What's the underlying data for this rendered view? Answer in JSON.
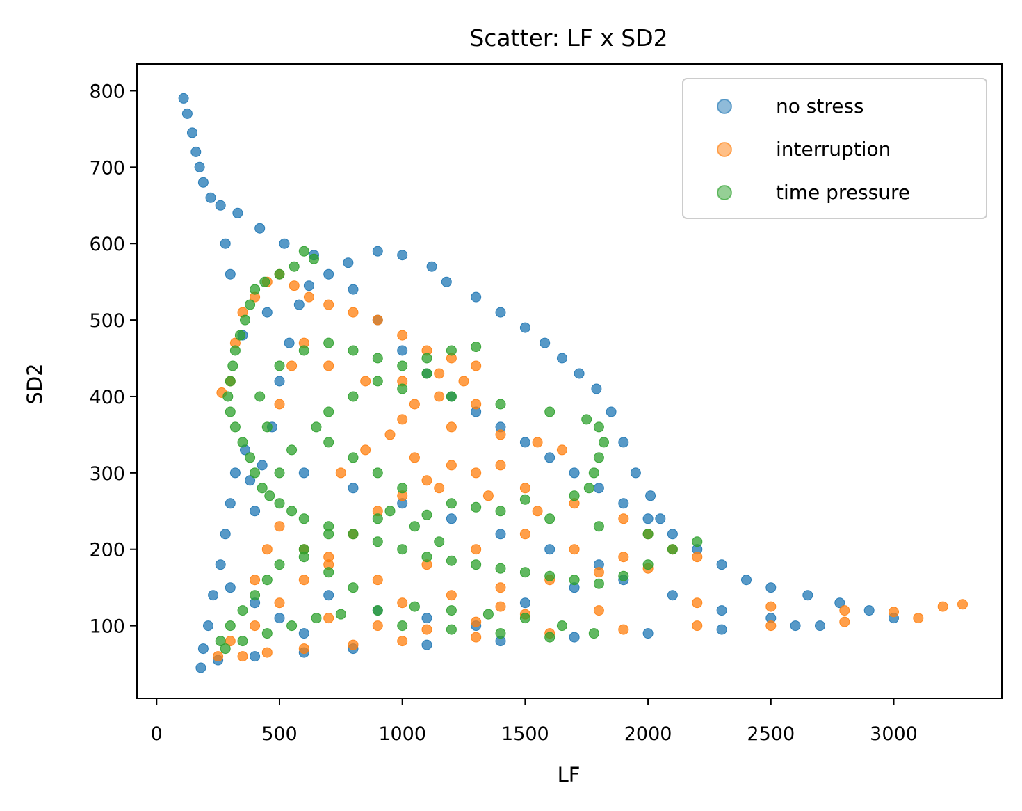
{
  "chart_data": {
    "type": "scatter",
    "title": "Scatter: LF x SD2",
    "xlabel": "LF",
    "ylabel": "SD2",
    "xlim": [
      -80,
      3440
    ],
    "ylim": [
      5,
      835
    ],
    "xticks": [
      0,
      500,
      1000,
      1500,
      2000,
      2500,
      3000
    ],
    "yticks": [
      100,
      200,
      300,
      400,
      500,
      600,
      700,
      800
    ],
    "legend_position": "top-right",
    "grid": false,
    "series": [
      {
        "name": "no stress",
        "color": "#1f77b4",
        "points": [
          [
            110,
            790
          ],
          [
            125,
            770
          ],
          [
            145,
            745
          ],
          [
            160,
            720
          ],
          [
            175,
            700
          ],
          [
            190,
            680
          ],
          [
            220,
            660
          ],
          [
            260,
            650
          ],
          [
            330,
            640
          ],
          [
            420,
            620
          ],
          [
            520,
            600
          ],
          [
            640,
            585
          ],
          [
            780,
            575
          ],
          [
            900,
            590
          ],
          [
            1000,
            585
          ],
          [
            1120,
            570
          ],
          [
            1180,
            550
          ],
          [
            1300,
            530
          ],
          [
            1400,
            510
          ],
          [
            1500,
            490
          ],
          [
            1580,
            470
          ],
          [
            1650,
            450
          ],
          [
            1720,
            430
          ],
          [
            1790,
            410
          ],
          [
            1850,
            380
          ],
          [
            1900,
            340
          ],
          [
            1950,
            300
          ],
          [
            2010,
            270
          ],
          [
            2050,
            240
          ],
          [
            2100,
            220
          ],
          [
            2200,
            200
          ],
          [
            2300,
            180
          ],
          [
            2400,
            160
          ],
          [
            2500,
            150
          ],
          [
            2650,
            140
          ],
          [
            2780,
            130
          ],
          [
            2900,
            120
          ],
          [
            3000,
            110
          ],
          [
            2600,
            100
          ],
          [
            2300,
            95
          ],
          [
            2000,
            90
          ],
          [
            1700,
            85
          ],
          [
            1400,
            80
          ],
          [
            1100,
            75
          ],
          [
            800,
            70
          ],
          [
            600,
            65
          ],
          [
            400,
            60
          ],
          [
            250,
            55
          ],
          [
            180,
            45
          ],
          [
            190,
            70
          ],
          [
            210,
            100
          ],
          [
            230,
            140
          ],
          [
            260,
            180
          ],
          [
            280,
            220
          ],
          [
            300,
            260
          ],
          [
            320,
            300
          ],
          [
            360,
            330
          ],
          [
            380,
            290
          ],
          [
            400,
            250
          ],
          [
            430,
            310
          ],
          [
            470,
            360
          ],
          [
            500,
            420
          ],
          [
            540,
            470
          ],
          [
            580,
            520
          ],
          [
            620,
            545
          ],
          [
            700,
            560
          ],
          [
            800,
            540
          ],
          [
            900,
            500
          ],
          [
            1000,
            460
          ],
          [
            1100,
            430
          ],
          [
            1200,
            400
          ],
          [
            1300,
            380
          ],
          [
            1400,
            360
          ],
          [
            1500,
            340
          ],
          [
            1600,
            320
          ],
          [
            1700,
            300
          ],
          [
            1800,
            280
          ],
          [
            1900,
            260
          ],
          [
            2000,
            240
          ],
          [
            350,
            480
          ],
          [
            450,
            510
          ],
          [
            300,
            560
          ],
          [
            280,
            600
          ],
          [
            600,
            300
          ],
          [
            800,
            280
          ],
          [
            1000,
            260
          ],
          [
            1200,
            240
          ],
          [
            1400,
            220
          ],
          [
            1600,
            200
          ],
          [
            1800,
            180
          ],
          [
            700,
            140
          ],
          [
            900,
            120
          ],
          [
            1100,
            110
          ],
          [
            1300,
            100
          ],
          [
            1500,
            130
          ],
          [
            1700,
            150
          ],
          [
            1900,
            160
          ],
          [
            2100,
            140
          ],
          [
            2300,
            120
          ],
          [
            2500,
            110
          ],
          [
            2700,
            100
          ],
          [
            600,
            90
          ],
          [
            500,
            110
          ],
          [
            400,
            130
          ],
          [
            300,
            150
          ]
        ]
      },
      {
        "name": "interruption",
        "color": "#ff7f0e",
        "points": [
          [
            265,
            405
          ],
          [
            300,
            420
          ],
          [
            320,
            470
          ],
          [
            350,
            510
          ],
          [
            400,
            530
          ],
          [
            450,
            550
          ],
          [
            500,
            560
          ],
          [
            560,
            545
          ],
          [
            620,
            530
          ],
          [
            700,
            520
          ],
          [
            800,
            510
          ],
          [
            900,
            500
          ],
          [
            1000,
            480
          ],
          [
            1100,
            460
          ],
          [
            1200,
            450
          ],
          [
            1300,
            440
          ],
          [
            1250,
            420
          ],
          [
            1150,
            400
          ],
          [
            1050,
            390
          ],
          [
            1000,
            370
          ],
          [
            1200,
            360
          ],
          [
            1400,
            350
          ],
          [
            1550,
            340
          ],
          [
            1650,
            330
          ],
          [
            1400,
            310
          ],
          [
            1300,
            300
          ],
          [
            1500,
            280
          ],
          [
            1700,
            260
          ],
          [
            1900,
            240
          ],
          [
            2000,
            220
          ],
          [
            2100,
            200
          ],
          [
            2200,
            190
          ],
          [
            2000,
            175
          ],
          [
            1800,
            170
          ],
          [
            1600,
            160
          ],
          [
            1400,
            150
          ],
          [
            1200,
            140
          ],
          [
            1000,
            130
          ],
          [
            1400,
            125
          ],
          [
            1800,
            120
          ],
          [
            2200,
            130
          ],
          [
            2500,
            125
          ],
          [
            2800,
            120
          ],
          [
            3000,
            118
          ],
          [
            3200,
            125
          ],
          [
            3280,
            128
          ],
          [
            3100,
            110
          ],
          [
            2800,
            105
          ],
          [
            2500,
            100
          ],
          [
            2200,
            100
          ],
          [
            1900,
            95
          ],
          [
            1600,
            90
          ],
          [
            1300,
            85
          ],
          [
            1000,
            80
          ],
          [
            800,
            75
          ],
          [
            600,
            70
          ],
          [
            450,
            65
          ],
          [
            350,
            60
          ],
          [
            250,
            60
          ],
          [
            300,
            80
          ],
          [
            400,
            100
          ],
          [
            500,
            130
          ],
          [
            600,
            160
          ],
          [
            700,
            190
          ],
          [
            800,
            220
          ],
          [
            900,
            250
          ],
          [
            1000,
            270
          ],
          [
            1100,
            290
          ],
          [
            1200,
            310
          ],
          [
            500,
            390
          ],
          [
            550,
            440
          ],
          [
            600,
            470
          ],
          [
            700,
            440
          ],
          [
            850,
            420
          ],
          [
            1000,
            420
          ],
          [
            1150,
            430
          ],
          [
            1300,
            390
          ],
          [
            400,
            160
          ],
          [
            450,
            200
          ],
          [
            500,
            230
          ],
          [
            600,
            200
          ],
          [
            700,
            180
          ],
          [
            900,
            160
          ],
          [
            1100,
            180
          ],
          [
            1300,
            200
          ],
          [
            1500,
            220
          ],
          [
            1700,
            200
          ],
          [
            1900,
            190
          ],
          [
            750,
            300
          ],
          [
            850,
            330
          ],
          [
            950,
            350
          ],
          [
            1050,
            320
          ],
          [
            1150,
            280
          ],
          [
            1350,
            270
          ],
          [
            1550,
            250
          ],
          [
            700,
            110
          ],
          [
            900,
            100
          ],
          [
            1100,
            95
          ],
          [
            1300,
            105
          ],
          [
            1500,
            115
          ]
        ]
      },
      {
        "name": "time pressure",
        "color": "#2ca02c",
        "points": [
          [
            600,
            590
          ],
          [
            640,
            580
          ],
          [
            560,
            570
          ],
          [
            500,
            560
          ],
          [
            440,
            550
          ],
          [
            400,
            540
          ],
          [
            380,
            520
          ],
          [
            360,
            500
          ],
          [
            340,
            480
          ],
          [
            320,
            460
          ],
          [
            310,
            440
          ],
          [
            300,
            420
          ],
          [
            290,
            400
          ],
          [
            300,
            380
          ],
          [
            320,
            360
          ],
          [
            350,
            340
          ],
          [
            380,
            320
          ],
          [
            400,
            300
          ],
          [
            430,
            280
          ],
          [
            460,
            270
          ],
          [
            500,
            260
          ],
          [
            550,
            250
          ],
          [
            600,
            240
          ],
          [
            700,
            230
          ],
          [
            800,
            220
          ],
          [
            900,
            210
          ],
          [
            1000,
            200
          ],
          [
            1100,
            190
          ],
          [
            1200,
            185
          ],
          [
            1300,
            180
          ],
          [
            1400,
            175
          ],
          [
            1500,
            170
          ],
          [
            1600,
            165
          ],
          [
            1700,
            160
          ],
          [
            1800,
            155
          ],
          [
            1900,
            165
          ],
          [
            2000,
            180
          ],
          [
            2100,
            200
          ],
          [
            2200,
            210
          ],
          [
            2000,
            220
          ],
          [
            1800,
            230
          ],
          [
            1600,
            240
          ],
          [
            1400,
            250
          ],
          [
            1200,
            260
          ],
          [
            1000,
            280
          ],
          [
            900,
            300
          ],
          [
            800,
            320
          ],
          [
            700,
            340
          ],
          [
            650,
            360
          ],
          [
            700,
            380
          ],
          [
            800,
            400
          ],
          [
            900,
            420
          ],
          [
            1000,
            440
          ],
          [
            1100,
            450
          ],
          [
            1200,
            460
          ],
          [
            1300,
            465
          ],
          [
            1100,
            430
          ],
          [
            1000,
            410
          ],
          [
            1200,
            400
          ],
          [
            1400,
            390
          ],
          [
            1600,
            380
          ],
          [
            1750,
            370
          ],
          [
            1800,
            360
          ],
          [
            1820,
            340
          ],
          [
            1800,
            320
          ],
          [
            1780,
            300
          ],
          [
            1760,
            280
          ],
          [
            1700,
            270
          ],
          [
            1500,
            265
          ],
          [
            1300,
            255
          ],
          [
            1100,
            245
          ],
          [
            900,
            240
          ],
          [
            700,
            220
          ],
          [
            600,
            200
          ],
          [
            500,
            180
          ],
          [
            450,
            160
          ],
          [
            400,
            140
          ],
          [
            350,
            120
          ],
          [
            300,
            100
          ],
          [
            260,
            80
          ],
          [
            280,
            70
          ],
          [
            350,
            80
          ],
          [
            450,
            90
          ],
          [
            550,
            100
          ],
          [
            650,
            110
          ],
          [
            750,
            115
          ],
          [
            900,
            120
          ],
          [
            1050,
            125
          ],
          [
            1200,
            120
          ],
          [
            1350,
            115
          ],
          [
            1500,
            110
          ],
          [
            1650,
            100
          ],
          [
            1780,
            90
          ],
          [
            1600,
            85
          ],
          [
            1400,
            90
          ],
          [
            1200,
            95
          ],
          [
            1000,
            100
          ],
          [
            800,
            150
          ],
          [
            700,
            170
          ],
          [
            600,
            190
          ],
          [
            500,
            300
          ],
          [
            550,
            330
          ],
          [
            450,
            360
          ],
          [
            420,
            400
          ],
          [
            500,
            440
          ],
          [
            600,
            460
          ],
          [
            700,
            470
          ],
          [
            800,
            460
          ],
          [
            900,
            450
          ],
          [
            950,
            250
          ],
          [
            1050,
            230
          ],
          [
            1150,
            210
          ]
        ]
      }
    ]
  }
}
